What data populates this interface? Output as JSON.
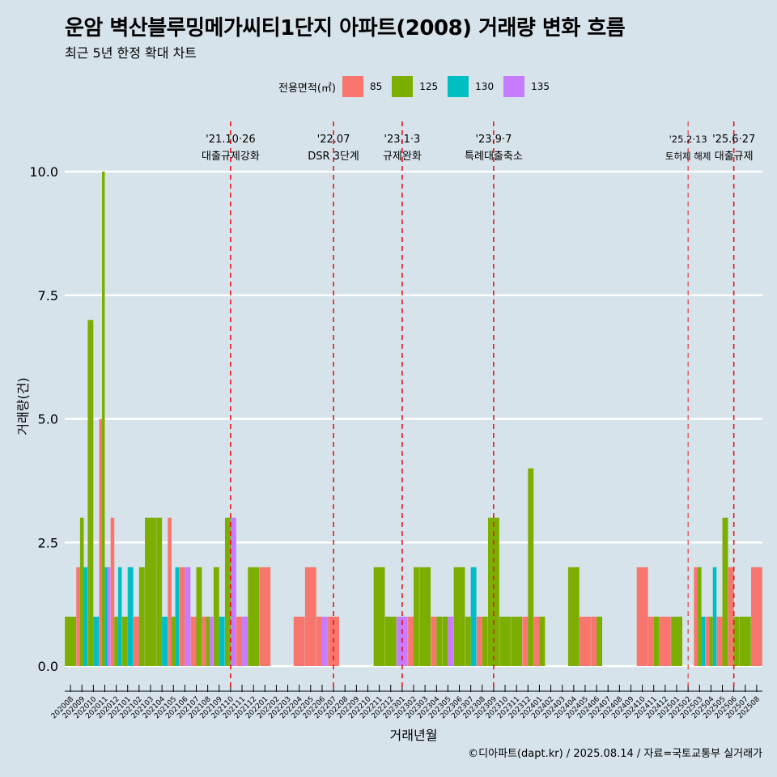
{
  "title": "운암 벽산블루밍메가씨티1단지 아파트(2008) 거래량 변화 흐름",
  "subtitle": "최근 5년 한정 확대 차트",
  "caption": "©디아파트(dapt.kr) / 2025.08.14 / 자료=국토교통부 실거래가",
  "legend": {
    "title": "전용면적(㎡)",
    "items": [
      {
        "label": "85",
        "color": "#f8766d"
      },
      {
        "label": "125",
        "color": "#7cae00"
      },
      {
        "label": "130",
        "color": "#00bfc4"
      },
      {
        "label": "135",
        "color": "#c77cff"
      }
    ]
  },
  "chart_data": {
    "type": "bar",
    "xlabel": "거래년월",
    "ylabel": "거래량(건)",
    "ylim": [
      0,
      10
    ],
    "yticks": [
      "0.0",
      "2.5",
      "5.0",
      "7.5",
      "10.0"
    ],
    "ytick_values": [
      0,
      2.5,
      5,
      7.5,
      10
    ],
    "grid": true,
    "categories": [
      "202008",
      "202009",
      "202010",
      "202011",
      "202012",
      "202101",
      "202102",
      "202103",
      "202104",
      "202105",
      "202106",
      "202107",
      "202108",
      "202109",
      "202110",
      "202111",
      "202112",
      "202201",
      "202202",
      "202203",
      "202204",
      "202205",
      "202206",
      "202207",
      "202208",
      "202209",
      "202210",
      "202211",
      "202212",
      "202301",
      "202302",
      "202303",
      "202304",
      "202305",
      "202306",
      "202307",
      "202308",
      "202309",
      "202310",
      "202311",
      "202312",
      "202401",
      "202402",
      "202403",
      "202404",
      "202405",
      "202406",
      "202407",
      "202408",
      "202409",
      "202410",
      "202411",
      "202412",
      "202501",
      "202502",
      "202503",
      "202504",
      "202505",
      "202506",
      "202507",
      "202508"
    ],
    "series": [
      {
        "name": "85",
        "values": [
          0,
          2,
          0,
          5,
          3,
          0,
          1,
          0,
          0,
          3,
          2,
          1,
          1,
          0,
          0,
          1,
          0,
          2,
          0,
          0,
          1,
          2,
          1,
          1,
          0,
          0,
          0,
          0,
          0,
          0,
          1,
          0,
          1,
          0,
          0,
          0,
          1,
          0,
          0,
          0,
          1,
          1,
          0,
          0,
          0,
          1,
          1,
          0,
          0,
          0,
          2,
          1,
          1,
          0,
          0,
          2,
          1,
          1,
          2,
          0,
          2
        ]
      },
      {
        "name": "125",
        "values": [
          1,
          3,
          7,
          10,
          1,
          1,
          2,
          3,
          3,
          1,
          0,
          2,
          1,
          2,
          3,
          0,
          2,
          0,
          0,
          0,
          0,
          0,
          0,
          0,
          0,
          0,
          0,
          2,
          1,
          0,
          2,
          2,
          1,
          1,
          2,
          1,
          1,
          3,
          1,
          1,
          4,
          1,
          0,
          0,
          2,
          0,
          1,
          0,
          0,
          0,
          0,
          1,
          0,
          1,
          0,
          2,
          1,
          3,
          1,
          1,
          0
        ]
      },
      {
        "name": "130",
        "values": [
          0,
          2,
          1,
          2,
          2,
          2,
          0,
          0,
          1,
          2,
          0,
          0,
          0,
          1,
          0,
          0,
          0,
          0,
          0,
          0,
          0,
          0,
          0,
          0,
          0,
          0,
          0,
          0,
          0,
          0,
          0,
          0,
          0,
          0,
          0,
          2,
          0,
          0,
          0,
          0,
          0,
          0,
          0,
          0,
          0,
          0,
          0,
          0,
          0,
          0,
          0,
          0,
          0,
          0,
          0,
          1,
          2,
          0,
          0,
          0,
          0
        ]
      },
      {
        "name": "135",
        "values": [
          0,
          0,
          0,
          2,
          0,
          0,
          0,
          0,
          0,
          0,
          2,
          0,
          1,
          0,
          3,
          1,
          0,
          0,
          0,
          0,
          0,
          0,
          1,
          0,
          0,
          0,
          0,
          0,
          0,
          1,
          0,
          0,
          0,
          1,
          0,
          0,
          0,
          0,
          0,
          0,
          0,
          0,
          0,
          0,
          0,
          0,
          0,
          0,
          0,
          0,
          0,
          0,
          0,
          0,
          0,
          0,
          0,
          0,
          0,
          0,
          0
        ]
      }
    ],
    "events": [
      {
        "date": "'21.10·26",
        "label": "대출규제강화",
        "x": "202110"
      },
      {
        "date": "'22.07",
        "label": "DSR 3단계",
        "x": "202207"
      },
      {
        "date": "'23.1·3",
        "label": "규제완화",
        "x": "202301"
      },
      {
        "date": "'23.9·7",
        "label": "특례대출축소",
        "x": "202309"
      },
      {
        "date": "'25.2·13",
        "label": "토허제 해제",
        "x": "202502"
      },
      {
        "date": "'25.6·27",
        "label": "대출규제",
        "x": "202506"
      }
    ]
  }
}
